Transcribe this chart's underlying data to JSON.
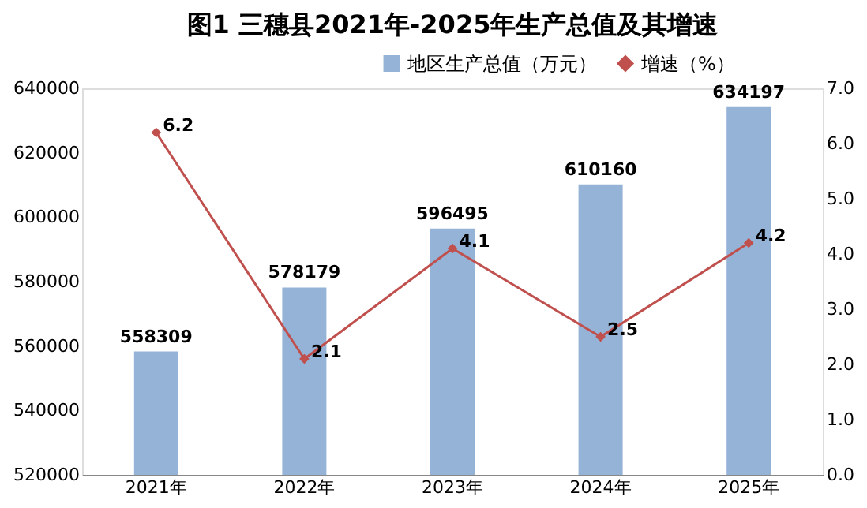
{
  "chart_data": {
    "type": "bar",
    "title": "图1  三穗县2021年-2025年生产总值及其增速",
    "categories": [
      "2021年",
      "2022年",
      "2023年",
      "2024年",
      "2025年"
    ],
    "series": [
      {
        "name": "地区生产总值（万元）",
        "color": "#95b3d7",
        "values": [
          558309,
          578179,
          596495,
          610160,
          634197
        ]
      },
      {
        "name": "增速（%）",
        "type": "line",
        "axis": "y2",
        "color": "#c0504d",
        "values": [
          6.2,
          2.1,
          4.1,
          2.5,
          4.2
        ]
      }
    ],
    "ylim": [
      520000,
      640000
    ],
    "yticks": [
      520000,
      540000,
      560000,
      580000,
      600000,
      620000,
      640000
    ],
    "y2lim": [
      0,
      7
    ],
    "y2ticks": [
      {
        "value": 0,
        "label": "0.0"
      },
      {
        "value": 1,
        "label": "1.0"
      },
      {
        "value": 2,
        "label": "2.0"
      },
      {
        "value": 3,
        "label": "3.0"
      },
      {
        "value": 4,
        "label": "4.0"
      },
      {
        "value": 5,
        "label": "5.0"
      },
      {
        "value": 6,
        "label": "6.0"
      },
      {
        "value": 7,
        "label": "7.0"
      }
    ],
    "data_labels": true,
    "legend": "top right",
    "grid": false,
    "marker": "diamond",
    "line_style": "solid"
  }
}
